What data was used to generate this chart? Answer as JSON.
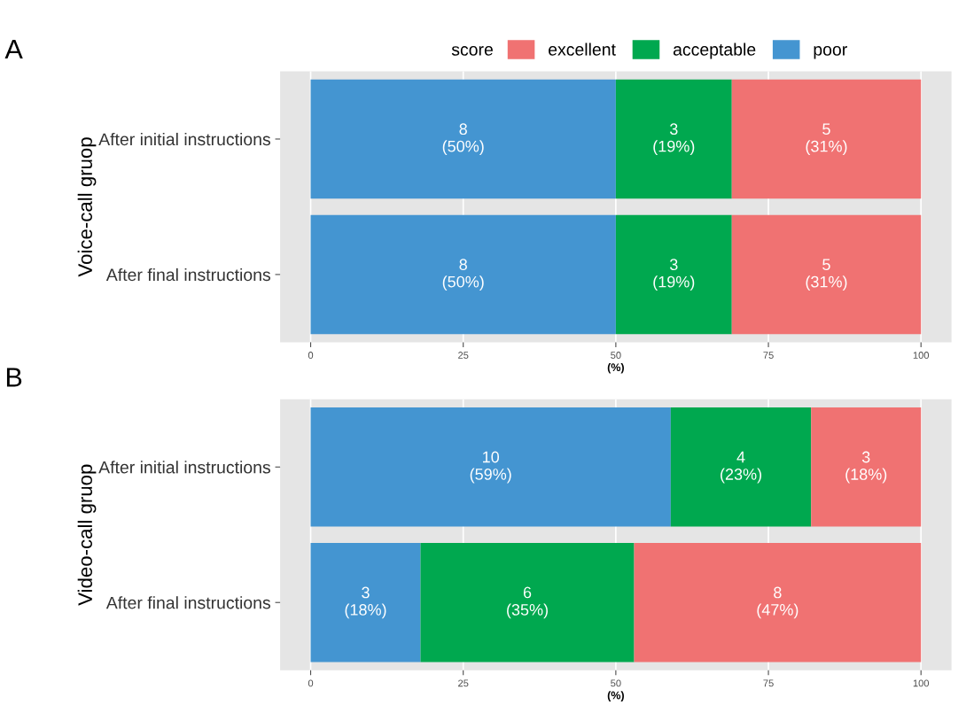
{
  "chart_data": [
    {
      "type": "bar",
      "orientation": "horizontal",
      "stacked": true,
      "title": "A",
      "ylabel": "Voice-call gruop",
      "xlabel": "(%)",
      "legend_title": "score",
      "legend": "top",
      "categories": [
        "After initial instructions",
        "After final instructions"
      ],
      "series": [
        {
          "name": "poor",
          "color": "#4495d1",
          "values": [
            50,
            50
          ],
          "value_labels": [
            "8\n(50%)",
            "8\n(50%)"
          ]
        },
        {
          "name": "acceptable",
          "color": "#00a84f",
          "values": [
            19,
            19
          ],
          "value_labels": [
            "3\n(19%)",
            "3\n(19%)"
          ]
        },
        {
          "name": "excellent",
          "color": "#f07272",
          "values": [
            31,
            31
          ],
          "value_labels": [
            "5\n(31%)",
            "5\n(31%)"
          ]
        }
      ],
      "xlim": [
        -5,
        105
      ],
      "xticks": [
        0,
        25,
        50,
        75,
        100
      ],
      "grid": "x"
    },
    {
      "type": "bar",
      "orientation": "horizontal",
      "stacked": true,
      "title": "B",
      "ylabel": "Video-call gruop",
      "xlabel": "(%)",
      "categories": [
        "After initial instructions",
        "After final instructions"
      ],
      "series": [
        {
          "color": "#4495d1",
          "values": [
            59,
            18
          ],
          "value_labels": [
            "10\n(59%)",
            "3\n(18%)"
          ]
        },
        {
          "color": "#00a84f",
          "values": [
            23,
            35
          ],
          "value_labels": [
            "4\n(23%)",
            "6\n(35%)"
          ]
        },
        {
          "color": "#f07272",
          "values": [
            18,
            47
          ],
          "value_labels": [
            "3\n(18%)",
            "8\n(47%)"
          ]
        }
      ],
      "xlim": [
        -5,
        105
      ],
      "xticks": [
        0,
        25,
        50,
        75,
        100
      ],
      "grid": "x"
    }
  ]
}
